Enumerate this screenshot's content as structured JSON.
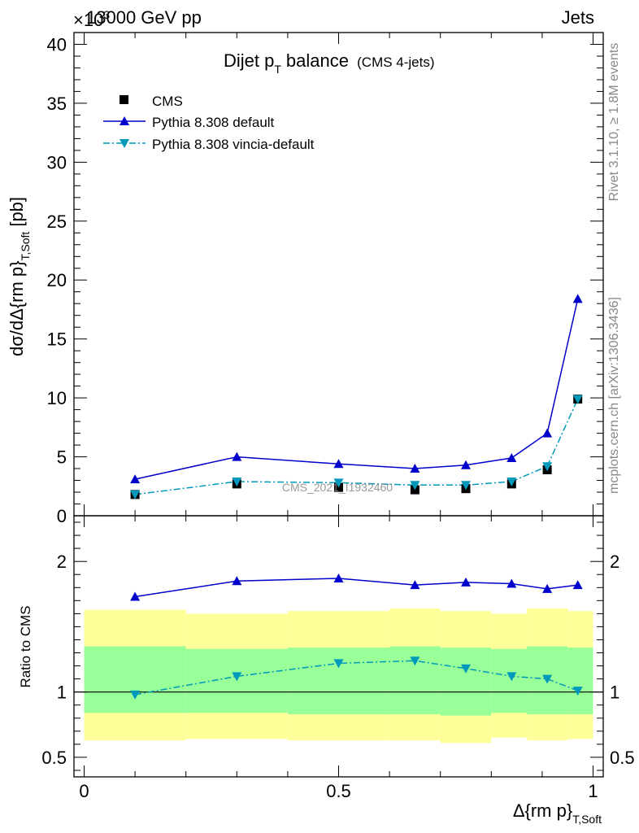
{
  "header": {
    "energy": "13000 GeV pp",
    "process": "Jets",
    "exponent_mark": "×10",
    "exponent_power": "3"
  },
  "side_labels": {
    "rivet": "Rivet 3.1.10, ≥ 1.8M events",
    "mcplots": "mcplots.cern.ch [arXiv:1306.3436]"
  },
  "watermark": "CMS_2021_I1932460",
  "colors": {
    "cms": "#000000",
    "default": "#0000cc",
    "vincia": "#0099bb",
    "band_inner": "#99ff99",
    "band_outer": "#ffff99"
  },
  "legend": [
    {
      "label": "CMS",
      "marker": "square"
    },
    {
      "label": "Pythia 8.308 default",
      "marker": "triangle-up"
    },
    {
      "label": "Pythia 8.308 vincia-default",
      "marker": "triangle-down"
    }
  ],
  "chart_data": [
    {
      "type": "line",
      "title_main": "Dijet p",
      "title_sub": "T",
      "title_rest": "balance",
      "title_note": "(CMS 4-jets)",
      "ylabel_main": "dσ/dΔ{rm p}",
      "ylabel_sub": "T,Soft",
      "ylabel_unit": "[pb]",
      "ylim": [
        0,
        41
      ],
      "yticks": [
        0,
        5,
        10,
        15,
        20,
        25,
        30,
        35,
        40
      ],
      "ytick_labels": [
        "0",
        "5",
        "10",
        "15",
        "20",
        "25",
        "30",
        "35",
        "40"
      ],
      "x": [
        0.1,
        0.3,
        0.5,
        0.65,
        0.75,
        0.84,
        0.91,
        0.97
      ],
      "series": [
        {
          "name": "CMS",
          "values": [
            1.8,
            2.7,
            2.4,
            2.2,
            2.3,
            2.7,
            3.9,
            9.9
          ]
        },
        {
          "name": "Pythia 8.308 default",
          "values": [
            3.1,
            5.0,
            4.4,
            4.0,
            4.3,
            4.9,
            7.0,
            18.4
          ]
        },
        {
          "name": "Pythia 8.308 vincia-default",
          "values": [
            1.8,
            2.9,
            2.8,
            2.6,
            2.6,
            2.9,
            4.2,
            9.9
          ]
        }
      ]
    },
    {
      "type": "line",
      "ylabel": "Ratio to CMS",
      "ylim": [
        0.35,
        2.35
      ],
      "yticks": [
        0.5,
        1,
        2
      ],
      "ytick_labels": [
        "0.5",
        "1",
        "2"
      ],
      "xlim": [
        -0.02,
        1.02
      ],
      "xticks": [
        0,
        0.5,
        1
      ],
      "xtick_labels": [
        "0",
        "0.5",
        "1"
      ],
      "xlabel_main": "Δ{rm p}",
      "xlabel_sub": "T,Soft",
      "x": [
        0.1,
        0.3,
        0.5,
        0.65,
        0.75,
        0.84,
        0.91,
        0.97
      ],
      "series": [
        {
          "name": "Pythia 8.308 default",
          "values": [
            1.73,
            1.85,
            1.87,
            1.82,
            1.84,
            1.83,
            1.79,
            1.82
          ]
        },
        {
          "name": "Pythia 8.308 vincia-default",
          "values": [
            0.98,
            1.12,
            1.22,
            1.24,
            1.18,
            1.12,
            1.1,
            1.01
          ]
        }
      ],
      "bands": [
        {
          "x_lo": 0.0,
          "x_hi": 0.2,
          "inner": [
            0.84,
            1.35
          ],
          "outer": [
            0.63,
            1.63
          ]
        },
        {
          "x_lo": 0.2,
          "x_hi": 0.4,
          "inner": [
            0.84,
            1.33
          ],
          "outer": [
            0.64,
            1.6
          ]
        },
        {
          "x_lo": 0.4,
          "x_hi": 0.6,
          "inner": [
            0.83,
            1.34
          ],
          "outer": [
            0.63,
            1.62
          ]
        },
        {
          "x_lo": 0.6,
          "x_hi": 0.7,
          "inner": [
            0.83,
            1.35
          ],
          "outer": [
            0.63,
            1.64
          ]
        },
        {
          "x_lo": 0.7,
          "x_hi": 0.8,
          "inner": [
            0.82,
            1.34
          ],
          "outer": [
            0.61,
            1.62
          ]
        },
        {
          "x_lo": 0.8,
          "x_hi": 0.87,
          "inner": [
            0.84,
            1.33
          ],
          "outer": [
            0.65,
            1.6
          ]
        },
        {
          "x_lo": 0.87,
          "x_hi": 0.95,
          "inner": [
            0.83,
            1.35
          ],
          "outer": [
            0.63,
            1.64
          ]
        },
        {
          "x_lo": 0.95,
          "x_hi": 1.0,
          "inner": [
            0.83,
            1.34
          ],
          "outer": [
            0.64,
            1.62
          ]
        }
      ]
    }
  ]
}
